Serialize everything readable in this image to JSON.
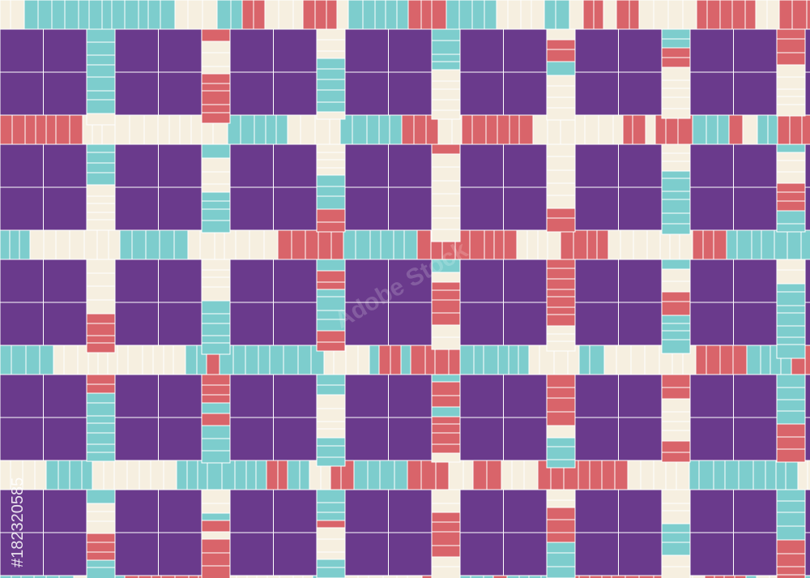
{
  "watermark": {
    "text": "Adobe Stock"
  },
  "stock_id": "#182320585"
}
